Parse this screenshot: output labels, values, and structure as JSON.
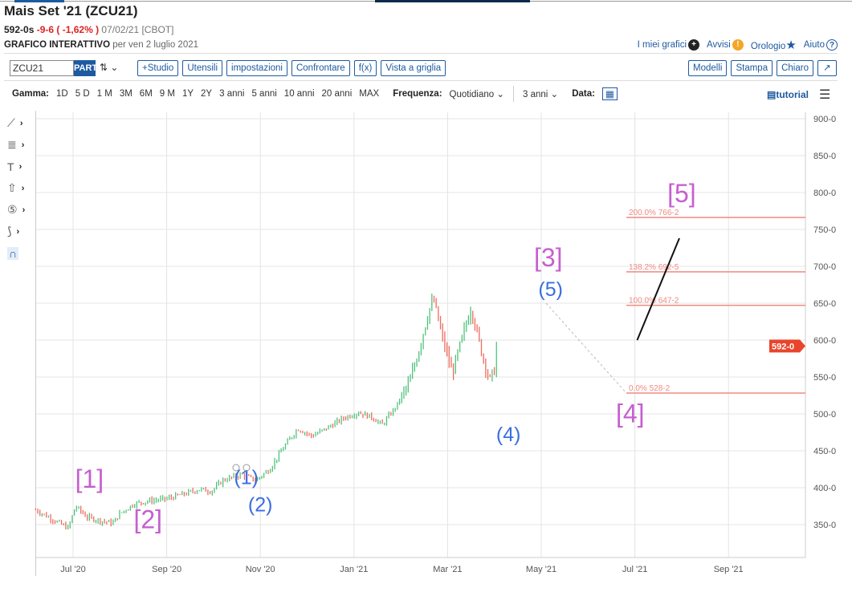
{
  "header": {
    "title": "Mais Set '21 (ZCU21)",
    "last": "592-0s",
    "change": "-9-6 ( -1,62% )",
    "date": "07/02/21 [CBOT]",
    "subtitle_bold": "GRAFICO INTERATTIVO",
    "subtitle": "per ven 2 luglio 2021"
  },
  "links": {
    "my_charts": "I miei grafici",
    "alerts": "Avvisi",
    "watch": "Orologio",
    "help": "Aiuto"
  },
  "toolbar": {
    "symbol": "ZCU21",
    "part": "PART",
    "study": "+Studio",
    "tools": "Utensili",
    "settings": "impostazioni",
    "compare": "Confrontare",
    "fx": "f(x)",
    "grid": "Vista a griglia",
    "templates": "Modelli",
    "print": "Stampa",
    "theme": "Chiaro"
  },
  "range": {
    "label": "Gamma:",
    "items": [
      "1D",
      "5 D",
      "1 M",
      "3M",
      "6M",
      "9 M",
      "1Y",
      "2Y",
      "3 anni",
      "5 anni",
      "10 anni",
      "20 anni",
      "MAX"
    ],
    "freq_label": "Frequenza:",
    "freq": "Quotidiano",
    "period": "3 anni",
    "date_label": "Data:",
    "tutorial": "tutorial"
  },
  "colors": {
    "up": "#4fc27a",
    "down": "#ef6b5e",
    "accent": "#1e5aa0",
    "fib": "#f08a80",
    "wave_major": "#c65fd0",
    "wave_minor": "#3a6ee0"
  },
  "chart_data": {
    "type": "ohlc",
    "ylim": [
      300,
      910
    ],
    "yticks": [
      900,
      850,
      800,
      750,
      700,
      650,
      600,
      550,
      500,
      450,
      400,
      350
    ],
    "ytick_labels": [
      "900-0",
      "850-0",
      "800-0",
      "750-0",
      "700-0",
      "650-0",
      "600-0",
      "550-0",
      "500-0",
      "450-0",
      "400-0",
      "350-0"
    ],
    "xticks": [
      "Jul '20",
      "Sep '20",
      "Nov '20",
      "Jan '21",
      "Mar '21",
      "May '21",
      "Jul '21",
      "Sep '21"
    ],
    "xtick_months": [
      0,
      2,
      4,
      6,
      8,
      10,
      12,
      14
    ],
    "last_price": 592,
    "last_label": "592-0",
    "close_path": [
      [
        -0.8,
        370
      ],
      [
        -0.1,
        345
      ],
      [
        0.05,
        375
      ],
      [
        0.3,
        360
      ],
      [
        0.6,
        355
      ],
      [
        0.85,
        352
      ],
      [
        1.0,
        365
      ],
      [
        1.3,
        378
      ],
      [
        1.6,
        382
      ],
      [
        2.0,
        385
      ],
      [
        2.4,
        392
      ],
      [
        2.7,
        398
      ],
      [
        2.95,
        395
      ],
      [
        3.2,
        410
      ],
      [
        3.6,
        418
      ],
      [
        3.9,
        410
      ],
      [
        4.2,
        425
      ],
      [
        4.5,
        455
      ],
      [
        4.8,
        480
      ],
      [
        5.1,
        470
      ],
      [
        5.4,
        480
      ],
      [
        5.8,
        495
      ],
      [
        6.1,
        502
      ],
      [
        6.4,
        495
      ],
      [
        6.6,
        485
      ],
      [
        6.9,
        510
      ],
      [
        7.2,
        545
      ],
      [
        7.4,
        590
      ],
      [
        7.6,
        640
      ],
      [
        7.7,
        655
      ],
      [
        7.9,
        600
      ],
      [
        8.1,
        555
      ],
      [
        8.3,
        600
      ],
      [
        8.5,
        645
      ],
      [
        8.7,
        590
      ],
      [
        8.9,
        545
      ],
      [
        9.0,
        560
      ],
      [
        9.05,
        595
      ]
    ],
    "fib_levels": [
      {
        "label": "200.0% 766-2",
        "value": 766.2
      },
      {
        "label": "138.2% 692-5",
        "value": 692.5
      },
      {
        "label": "100.0% 647-2",
        "value": 647.2
      },
      {
        "label": "0.0% 528-2",
        "value": 528.2
      }
    ],
    "waves": [
      {
        "label": "[1]",
        "m": 0.35,
        "p": 400,
        "major": true
      },
      {
        "label": "[2]",
        "m": 1.6,
        "p": 345,
        "major": true
      },
      {
        "label": "(1)",
        "m": 3.7,
        "p": 405,
        "major": false
      },
      {
        "label": "(2)",
        "m": 4.0,
        "p": 368,
        "major": false
      },
      {
        "label": "(4)",
        "m": 9.3,
        "p": 463,
        "major": false
      },
      {
        "label": "[3]",
        "m": 10.15,
        "p": 700,
        "major": true
      },
      {
        "label": "(5)",
        "m": 10.2,
        "p": 660,
        "major": false
      },
      {
        "label": "[4]",
        "m": 11.9,
        "p": 508,
        "major": true
      },
      {
        "label": "[5]",
        "m": 13.0,
        "p": 776,
        "major": true
      }
    ],
    "projection": [
      [
        12.05,
        600
      ],
      [
        12.95,
        738
      ]
    ]
  }
}
